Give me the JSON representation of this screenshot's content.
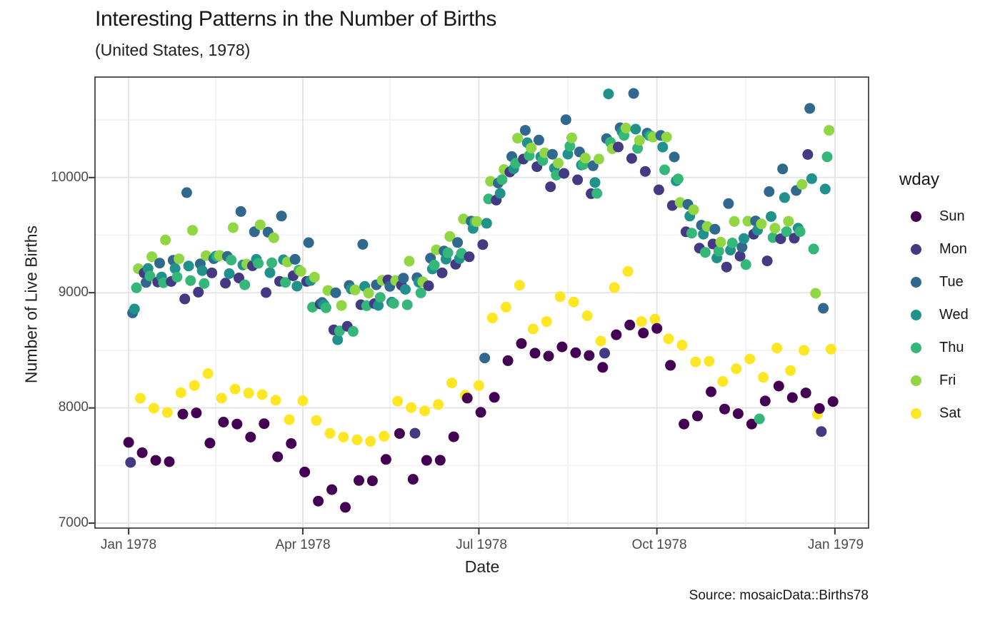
{
  "title": "Interesting Patterns in the Number of Births",
  "subtitle": "(United States, 1978)",
  "caption": "Source: mosaicData::Births78",
  "axes": {
    "x": {
      "label": "Date",
      "ticks": [
        "Jan 1978",
        "Apr 1978",
        "Jul 1978",
        "Oct 1978",
        "Jan 1979"
      ]
    },
    "y": {
      "label": "Number of Live Births",
      "ticks": [
        "7000",
        "8000",
        "9000",
        "10000"
      ]
    }
  },
  "legend": {
    "title": "wday",
    "items": [
      {
        "label": "Sun",
        "color": "#440154"
      },
      {
        "label": "Mon",
        "color": "#443983"
      },
      {
        "label": "Tue",
        "color": "#31688E"
      },
      {
        "label": "Wed",
        "color": "#21918C"
      },
      {
        "label": "Thu",
        "color": "#35B779"
      },
      {
        "label": "Fri",
        "color": "#90D743"
      },
      {
        "label": "Sat",
        "color": "#FDE725"
      }
    ]
  },
  "chart_data": {
    "type": "scatter",
    "title": "Interesting Patterns in the Number of Births",
    "subtitle": "(United States, 1978)",
    "caption": "Source: mosaicData::Births78",
    "xlabel": "Date",
    "ylabel": "Number of Live Births",
    "x_unit": "day_of_year_1978",
    "start_weekday": "Sun",
    "weekday_names": [
      "Sun",
      "Mon",
      "Tue",
      "Wed",
      "Thu",
      "Fri",
      "Sat"
    ],
    "weekday_colors": {
      "Sun": "#440154",
      "Mon": "#443983",
      "Tue": "#31688E",
      "Wed": "#21918C",
      "Thu": "#35B779",
      "Fri": "#90D743",
      "Sat": "#FDE725"
    },
    "x_tick_days": [
      1,
      91,
      182,
      274,
      366
    ],
    "x_tick_labels": [
      "Jan 1978",
      "Apr 1978",
      "Jul 1978",
      "Oct 1978",
      "Jan 1979"
    ],
    "x_minor_tick_days": [
      46,
      136,
      228,
      320
    ],
    "y_ticks": [
      7000,
      8000,
      9000,
      10000
    ],
    "y_minor_ticks": [
      7500,
      8500,
      9500,
      10500
    ],
    "xlim_days": [
      -16.4,
      383.4
    ],
    "ylim": [
      6957,
      10872
    ],
    "grid": "major+minor",
    "legend_position": "right",
    "point_radius_px": 7.5,
    "daily_births": [
      7701,
      7527,
      8825,
      8859,
      9043,
      9208,
      8084,
      7611,
      9172,
      9089,
      9210,
      9145,
      9313,
      7998,
      7545,
      9093,
      9257,
      9137,
      9087,
      9458,
      7961,
      7533,
      9097,
      9282,
      9210,
      9136,
      9294,
      8133,
      7946,
      8946,
      9869,
      9232,
      9105,
      9542,
      8194,
      7957,
      9005,
      9251,
      9192,
      9080,
      9322,
      8298,
      7695,
      9172,
      9296,
      9317,
      9315,
      9324,
      8085,
      7877,
      9083,
      9315,
      9166,
      9284,
      9565,
      8164,
      7860,
      9128,
      9705,
      9241,
      9069,
      9249,
      8129,
      7747,
      9234,
      9529,
      9290,
      9255,
      9590,
      8116,
      7863,
      9001,
      9526,
      9174,
      9260,
      9477,
      8067,
      7576,
      9099,
      9665,
      9286,
      9090,
      9267,
      7898,
      7691,
      9147,
      9290,
      9057,
      9196,
      9186,
      8063,
      7444,
      9098,
      9435,
      9105,
      8874,
      9135,
      7891,
      7191,
      8902,
      8915,
      8896,
      8869,
      9019,
      7779,
      7291,
      8678,
      9000,
      8592,
      8668,
      8889,
      7746,
      7137,
      8708,
      9063,
      9033,
      8664,
      9024,
      7723,
      7370,
      8896,
      9420,
      9055,
      8887,
      8997,
      7710,
      7368,
      8905,
      9069,
      8890,
      8960,
      9108,
      7754,
      7553,
      9111,
      9055,
      8918,
      8907,
      9105,
      8058,
      7778,
      9065,
      9127,
      9029,
      8895,
      9274,
      8003,
      7381,
      7780,
      9131,
      9091,
      8999,
      9095,
      7975,
      7545,
      9060,
      9300,
      9206,
      9240,
      9372,
      8030,
      7546,
      9172,
      9362,
      9291,
      9347,
      9488,
      8217,
      7749,
      9247,
      9436,
      9297,
      9342,
      9640,
      8110,
      8085,
      9312,
      9621,
      9558,
      9617,
      9618,
      8194,
      7962,
      9418,
      8433,
      9603,
      9814,
      9967,
      8781,
      8092,
      9804,
      9952,
      9862,
      9982,
      10070,
      8875,
      8410,
      10048,
      10182,
      10076,
      10124,
      10342,
      9065,
      8559,
      10160,
      10410,
      10302,
      10190,
      10256,
      8685,
      8475,
      10094,
      10325,
      10180,
      10148,
      10215,
      8750,
      8450,
      9920,
      10202,
      10081,
      10020,
      10125,
      8965,
      8530,
      10036,
      10502,
      10203,
      10272,
      10345,
      8920,
      8479,
      9980,
      10222,
      10109,
      10113,
      10169,
      8800,
      8455,
      9860,
      10102,
      9957,
      9862,
      10160,
      8580,
      8352,
      8475,
      10338,
      10726,
      10306,
      10250,
      9045,
      8635,
      10265,
      10432,
      10398,
      10366,
      10430,
      9185,
      8720,
      10166,
      10730,
      10420,
      10253,
      10322,
      8750,
      8650,
      10053,
      10385,
      10366,
      10361,
      10351,
      8770,
      8690,
      9893,
      10365,
      10264,
      10067,
      10351,
      8600,
      8370,
      9757,
      10178,
      9971,
      9988,
      9783,
      8545,
      7860,
      9529,
      9767,
      9665,
      9517,
      9720,
      8400,
      7930,
      9387,
      9586,
      9508,
      9350,
      9575,
      8405,
      8140,
      9423,
      9551,
      9302,
      9361,
      9439,
      8230,
      7990,
      9223,
      9774,
      9370,
      9432,
      9619,
      8340,
      7950,
      9317,
      9396,
      9470,
      9244,
      9621,
      8425,
      7860,
      9508,
      9623,
      9543,
      7905,
      9597,
      8265,
      8060,
      9276,
      9878,
      9661,
      9478,
      9560,
      8520,
      8190,
      9468,
      10075,
      9826,
      9530,
      9620,
      8325,
      8090,
      9473,
      9887,
      9560,
      9530,
      9940,
      8500,
      8130,
      10200,
      10600,
      9990,
      9380,
      8995,
      7945,
      7995,
      7795,
      8865,
      9900,
      10180,
      10410,
      8510,
      8055
    ]
  }
}
